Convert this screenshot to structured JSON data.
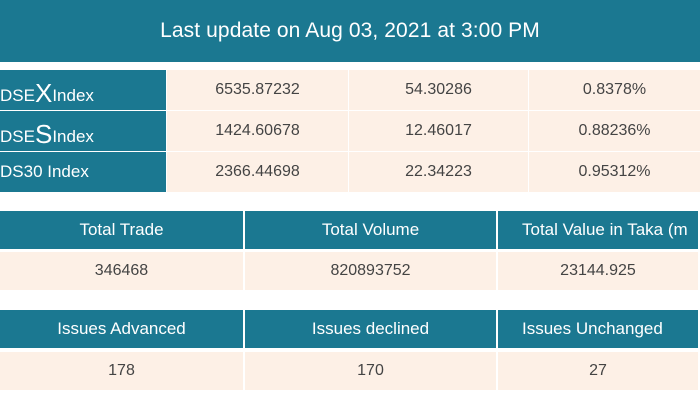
{
  "update": {
    "text": "Last update on Aug 03, 2021 at 3:00 PM"
  },
  "indices": [
    {
      "prefix": "DSE",
      "big_letter": "X",
      "suffix": " Index",
      "value": "6535.87232",
      "change": "54.30286",
      "percent": "0.8378%"
    },
    {
      "prefix": "DSE",
      "big_letter": "S",
      "suffix": " Index",
      "value": "1424.60678",
      "change": "12.46017",
      "percent": "0.88236%"
    },
    {
      "prefix": "DS30 Index",
      "big_letter": "",
      "suffix": "",
      "value": "2366.44698",
      "change": "22.34223",
      "percent": "0.95312%"
    }
  ],
  "trade_summary": {
    "headers": [
      "Total Trade",
      "Total Volume",
      "Total Value in Taka (m"
    ],
    "values": [
      "346468",
      "820893752",
      "23144.925"
    ]
  },
  "issues_summary": {
    "headers": [
      "Issues Advanced",
      "Issues declined",
      "Issues Unchanged"
    ],
    "values": [
      "178",
      "170",
      "27"
    ]
  },
  "colors": {
    "header_teal": "#1b7891",
    "cell_cream": "#fdf0e6",
    "text_dark": "#444444"
  }
}
